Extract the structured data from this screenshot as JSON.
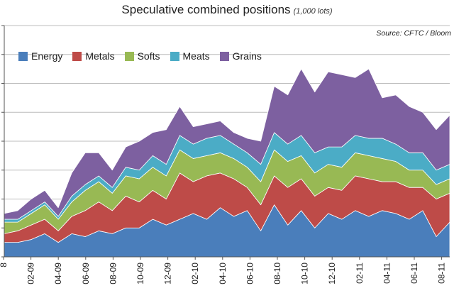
{
  "chart_data": {
    "type": "area",
    "stacked": true,
    "title": "Speculative combined positions",
    "subtitle": "(1,000 lots)",
    "source": "Source: CFTC / Bloom",
    "xlabel": "",
    "ylabel": "",
    "grid": true,
    "legend_position": "top-left",
    "x_tick_labels": [
      "8",
      "02-09",
      "04-09",
      "06-09",
      "08-09",
      "10-09",
      "12-09",
      "02-10",
      "04-10",
      "06-10",
      "08-10",
      "10-10",
      "12-10",
      "02-11",
      "04-11",
      "06-11",
      "08-11"
    ],
    "x": [
      "12-08",
      "01-09",
      "02-09",
      "03-09",
      "04-09",
      "05-09",
      "06-09",
      "07-09",
      "08-09",
      "09-09",
      "10-09",
      "11-09",
      "12-09",
      "01-10",
      "02-10",
      "03-10",
      "04-10",
      "05-10",
      "06-10",
      "07-10",
      "08-10",
      "09-10",
      "10-10",
      "11-10",
      "12-10",
      "01-11",
      "02-11",
      "03-11",
      "04-11",
      "05-11",
      "06-11",
      "07-11",
      "08-11",
      "09-11"
    ],
    "series": [
      {
        "name": "Energy",
        "color": "#4a7ebb",
        "values": [
          5,
          5,
          6,
          8,
          5,
          8,
          7,
          9,
          8,
          10,
          10,
          13,
          11,
          13,
          15,
          13,
          17,
          14,
          16,
          9,
          18,
          11,
          16,
          10,
          15,
          13,
          16,
          14,
          16,
          15,
          13,
          16,
          7,
          12
        ]
      },
      {
        "name": "Metals",
        "color": "#be4b48",
        "values": [
          3,
          4,
          5,
          5,
          4,
          6,
          9,
          10,
          8,
          11,
          9,
          10,
          9,
          16,
          11,
          15,
          12,
          13,
          8,
          9,
          10,
          13,
          11,
          11,
          9,
          10,
          12,
          13,
          10,
          11,
          11,
          8,
          13,
          10
        ]
      },
      {
        "name": "Softs",
        "color": "#98b954",
        "values": [
          4,
          3,
          4,
          5,
          4,
          5,
          7,
          7,
          6,
          7,
          8,
          8,
          8,
          8,
          8,
          7,
          7,
          7,
          7,
          8,
          9,
          9,
          8,
          8,
          8,
          8,
          8,
          8,
          8,
          7,
          6,
          6,
          5,
          5
        ]
      },
      {
        "name": "Meats",
        "color": "#4bacc6",
        "values": [
          1,
          1,
          1,
          1,
          1,
          2,
          2,
          2,
          2,
          3,
          3,
          4,
          4,
          5,
          5,
          6,
          6,
          5,
          5,
          6,
          6,
          6,
          7,
          7,
          6,
          7,
          6,
          6,
          7,
          6,
          6,
          6,
          5,
          5
        ]
      },
      {
        "name": "Grains",
        "color": "#7d60a0",
        "values": [
          2,
          3,
          4,
          4,
          3,
          8,
          11,
          8,
          6,
          7,
          10,
          8,
          12,
          10,
          6,
          5,
          5,
          4,
          5,
          8,
          16,
          17,
          23,
          21,
          26,
          25,
          20,
          24,
          14,
          17,
          16,
          14,
          14,
          17
        ]
      }
    ],
    "ylim": [
      0,
      80
    ]
  }
}
